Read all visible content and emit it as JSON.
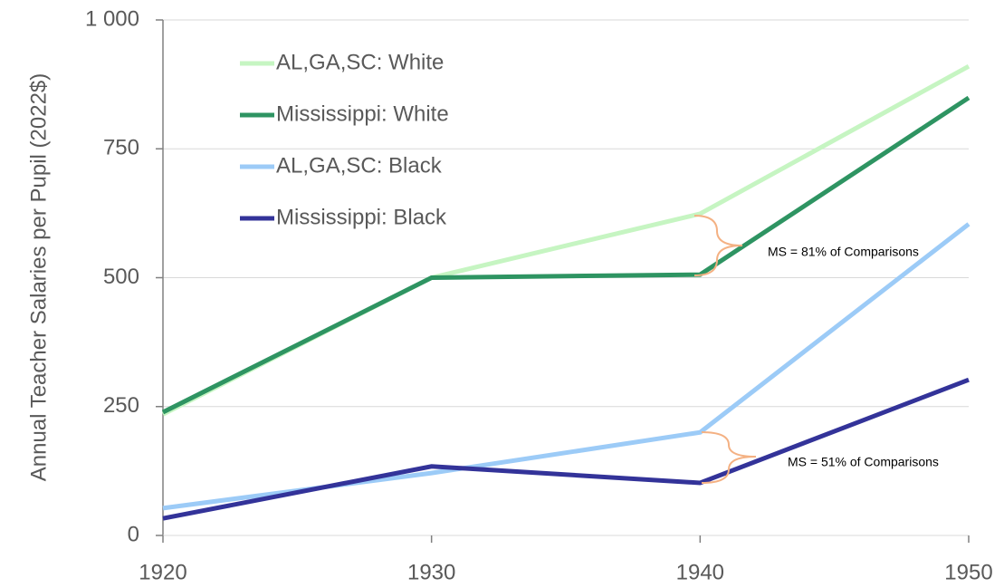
{
  "chart_data": {
    "type": "line",
    "y_label": "Annual Teacher Salaries per Pupil (2022$)",
    "x": [
      1920,
      1930,
      1940,
      1950
    ],
    "series": [
      {
        "name": "AL,GA,SC: White",
        "color": "#c6f5c2",
        "values": [
          235,
          500,
          624,
          910
        ]
      },
      {
        "name": "Mississippi: White",
        "color": "#2e9462",
        "values": [
          239,
          500,
          506,
          849
        ]
      },
      {
        "name": "AL,GA,SC: Black",
        "color": "#9ccbf7",
        "values": [
          53,
          121,
          200,
          604
        ]
      },
      {
        "name": "Mississippi: Black",
        "color": "#333399",
        "values": [
          33,
          134,
          102,
          302
        ]
      }
    ],
    "annotations": [
      "MS = 81% of Comparisons",
      "MS = 51% of Comparisons"
    ],
    "xlim": [
      1920,
      1950
    ],
    "xticks": [
      1920,
      1930,
      1940,
      1950
    ],
    "ylim": [
      0,
      1000
    ],
    "yticks": [
      0,
      250,
      500,
      750,
      {
        "value": 1000,
        "label": "1 000"
      }
    ],
    "grid": true,
    "legend": "top-left"
  }
}
